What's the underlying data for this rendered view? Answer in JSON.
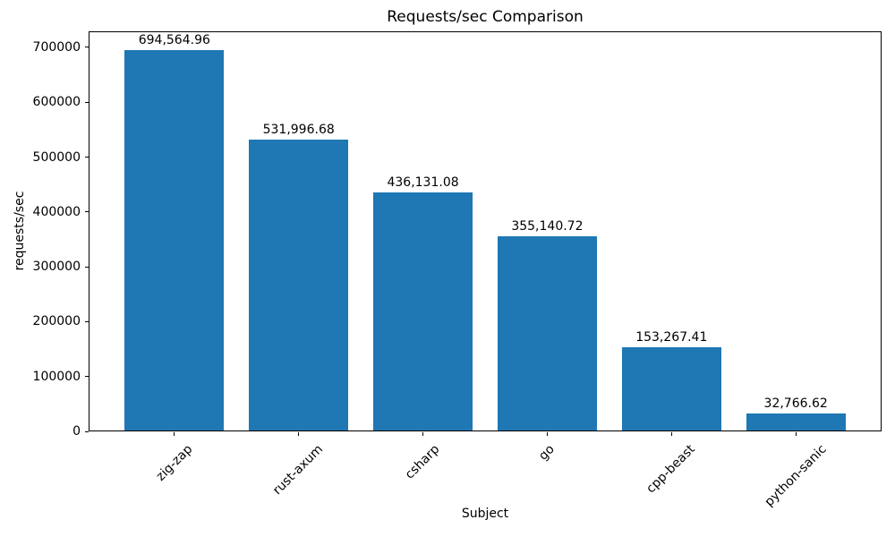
{
  "chart_data": {
    "type": "bar",
    "title": "Requests/sec Comparison",
    "xlabel": "Subject",
    "ylabel": "requests/sec",
    "categories": [
      "zig-zap",
      "rust-axum",
      "csharp",
      "go",
      "cpp-beast",
      "python-sanic"
    ],
    "values": [
      694564.96,
      531996.68,
      436131.08,
      355140.72,
      153267.41,
      32766.62
    ],
    "value_labels": [
      "694,564.96",
      "531,996.68",
      "436,131.08",
      "355,140.72",
      "153,267.41",
      "32,766.62"
    ],
    "ylim": [
      0,
      729293
    ],
    "yticks": [
      0,
      100000,
      200000,
      300000,
      400000,
      500000,
      600000,
      700000
    ],
    "ytick_labels": [
      "0",
      "100000",
      "200000",
      "300000",
      "400000",
      "500000",
      "600000",
      "700000"
    ],
    "bar_color": "#1f77b4",
    "bar_width_fraction": 0.8,
    "grid": false,
    "legend": null,
    "xtick_rotation": 45
  }
}
